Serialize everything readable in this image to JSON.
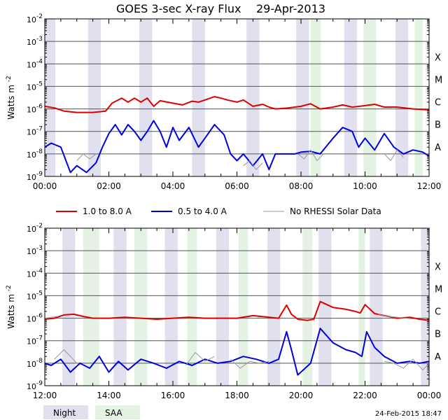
{
  "title_left": "GOES 3-sec X-ray Flux",
  "title_date": "29-Apr-2013",
  "footer_stamp": "24-Feb-2015 18:47",
  "chart_data": [
    {
      "type": "line",
      "y_scale": "log",
      "ylim": [
        1e-09,
        0.01
      ],
      "ylabel": "Watts m",
      "ylabel_exp": "-2",
      "ytick_labels": [
        {
          "value": 0.01,
          "base": "10",
          "exp": "-2"
        },
        {
          "value": 0.001,
          "base": "10",
          "exp": "-3"
        },
        {
          "value": 0.0001,
          "base": "10",
          "exp": "-4"
        },
        {
          "value": 1e-05,
          "base": "10",
          "exp": "-5"
        },
        {
          "value": 1e-06,
          "base": "10",
          "exp": "-6"
        },
        {
          "value": 1e-07,
          "base": "10",
          "exp": "-7"
        },
        {
          "value": 1e-08,
          "base": "10",
          "exp": "-8"
        },
        {
          "value": 1e-09,
          "base": "10",
          "exp": "-9"
        }
      ],
      "flare_classes": [
        {
          "label": "X",
          "value": 0.0001
        },
        {
          "label": "M",
          "value": 1e-05
        },
        {
          "label": "C",
          "value": 1e-06
        },
        {
          "label": "B",
          "value": 1e-07
        },
        {
          "label": "A",
          "value": 1e-08
        }
      ],
      "xlim": [
        0,
        12
      ],
      "xtick_values": [
        0,
        2,
        4,
        6,
        8,
        10,
        12
      ],
      "xtick_labels": [
        "00:00",
        "02:00",
        "04:00",
        "06:00",
        "08:00",
        "10:00",
        "12:00"
      ],
      "night_periods": [
        [
          0.0,
          0.33
        ],
        [
          1.35,
          1.75
        ],
        [
          2.95,
          3.35
        ],
        [
          4.6,
          5.0
        ],
        [
          6.3,
          6.7
        ],
        [
          7.85,
          8.25
        ],
        [
          9.35,
          9.75
        ],
        [
          10.95,
          11.35
        ]
      ],
      "saa_periods": [
        [
          8.3,
          8.62
        ],
        [
          9.95,
          10.35
        ],
        [
          11.55,
          11.8
        ]
      ],
      "series": [
        {
          "name": "1.0 to 8.0 A",
          "color": "#dd0000",
          "x": [
            0,
            0.3,
            0.6,
            1.0,
            1.5,
            1.9,
            2.1,
            2.4,
            2.6,
            2.8,
            3.0,
            3.2,
            3.4,
            3.6,
            4.0,
            4.3,
            4.6,
            4.8,
            5.0,
            5.3,
            5.5,
            5.7,
            6.0,
            6.2,
            6.5,
            6.8,
            7.0,
            7.2,
            7.6,
            8.0,
            8.3,
            8.6,
            9.0,
            9.3,
            9.6,
            10.0,
            10.3,
            10.6,
            11.0,
            11.5,
            12.0
          ],
          "y": [
            1.3e-06,
            1.1e-06,
            8e-07,
            7e-07,
            7e-07,
            8e-07,
            1.8e-06,
            3e-06,
            2e-06,
            3e-06,
            2e-06,
            3e-06,
            1.3e-06,
            2.3e-06,
            1.8e-06,
            1.5e-06,
            2.2e-06,
            2e-06,
            2.5e-06,
            3.5e-06,
            3e-06,
            2.5e-06,
            2e-06,
            2.5e-06,
            1.3e-06,
            1.6e-06,
            1.2e-06,
            1e-06,
            1.1e-06,
            1.3e-06,
            1.7e-06,
            1e-06,
            1.2e-06,
            1.5e-06,
            1.2e-06,
            1.4e-06,
            1.6e-06,
            1.2e-06,
            1.2e-06,
            1e-06,
            9e-07
          ]
        },
        {
          "name": "0.5 to 4.0 A",
          "color": "#0000dd",
          "x": [
            0,
            0.2,
            0.5,
            0.8,
            1.0,
            1.3,
            1.6,
            1.8,
            2.0,
            2.2,
            2.4,
            2.6,
            2.8,
            3.0,
            3.2,
            3.4,
            3.6,
            3.8,
            4.0,
            4.2,
            4.5,
            4.8,
            5.0,
            5.3,
            5.6,
            5.8,
            6.0,
            6.2,
            6.5,
            6.8,
            7.0,
            7.2,
            7.5,
            7.8,
            8.0,
            8.3,
            8.6,
            9.0,
            9.3,
            9.6,
            9.8,
            10.0,
            10.3,
            10.6,
            10.9,
            11.2,
            11.5,
            11.8,
            12.0
          ],
          "y": [
            2e-08,
            3e-08,
            2e-08,
            1.5e-09,
            3e-09,
            1.5e-09,
            4e-09,
            2e-08,
            8e-08,
            2e-07,
            7e-08,
            2e-07,
            1e-07,
            4e-08,
            1e-07,
            3e-07,
            1e-07,
            2e-08,
            1.5e-07,
            4e-08,
            1.5e-07,
            2e-08,
            5e-08,
            2e-07,
            7e-08,
            1e-08,
            5e-09,
            1e-08,
            3e-09,
            1e-08,
            2e-09,
            1e-08,
            1e-08,
            1e-08,
            1.2e-08,
            1.3e-08,
            1e-08,
            5e-08,
            1.5e-07,
            1e-07,
            2e-08,
            5e-08,
            1.5e-08,
            8e-08,
            2e-08,
            1e-08,
            1.5e-08,
            1.2e-08,
            8e-09
          ]
        },
        {
          "name": "No RHESSI Solar Data",
          "color": "#999999",
          "segments": [
            {
              "x": [
                1.0,
                1.2,
                1.4,
                1.6
              ],
              "y": [
                5e-09,
                1e-08,
                6e-09,
                1e-08
              ]
            },
            {
              "x": [
                6.2,
                6.4,
                6.6,
                6.8
              ],
              "y": [
                3e-09,
                5e-09,
                2e-09,
                4e-09
              ]
            },
            {
              "x": [
                7.9,
                8.1,
                8.3,
                8.5,
                8.7
              ],
              "y": [
                1e-08,
                6e-09,
                1.5e-08,
                5e-09,
                1e-08
              ]
            },
            {
              "x": [
                10.6,
                10.8,
                11.0,
                11.2
              ],
              "y": [
                1e-08,
                5e-09,
                1.5e-08,
                7e-09
              ]
            }
          ]
        }
      ]
    },
    {
      "type": "line",
      "y_scale": "log",
      "ylim": [
        1e-09,
        0.01
      ],
      "ylabel": "Watts m",
      "ylabel_exp": "-2",
      "ytick_labels": [
        {
          "value": 0.01,
          "base": "10",
          "exp": "-2"
        },
        {
          "value": 0.001,
          "base": "10",
          "exp": "-3"
        },
        {
          "value": 0.0001,
          "base": "10",
          "exp": "-4"
        },
        {
          "value": 1e-05,
          "base": "10",
          "exp": "-5"
        },
        {
          "value": 1e-06,
          "base": "10",
          "exp": "-6"
        },
        {
          "value": 1e-07,
          "base": "10",
          "exp": "-7"
        },
        {
          "value": 1e-08,
          "base": "10",
          "exp": "-8"
        },
        {
          "value": 1e-09,
          "base": "10",
          "exp": "-9"
        }
      ],
      "flare_classes": [
        {
          "label": "X",
          "value": 0.0001
        },
        {
          "label": "M",
          "value": 1e-05
        },
        {
          "label": "C",
          "value": 1e-06
        },
        {
          "label": "B",
          "value": 1e-07
        },
        {
          "label": "A",
          "value": 1e-08
        }
      ],
      "xlim": [
        12,
        24
      ],
      "xtick_values": [
        12,
        14,
        16,
        18,
        20,
        22,
        24
      ],
      "xtick_labels": [
        "12:00",
        "14:00",
        "16:00",
        "18:00",
        "20:00",
        "22:00",
        "00:00"
      ],
      "night_periods": [
        [
          12.55,
          12.95
        ],
        [
          14.15,
          14.55
        ],
        [
          15.75,
          16.15
        ],
        [
          17.35,
          17.75
        ],
        [
          18.95,
          19.35
        ],
        [
          20.55,
          20.95
        ],
        [
          22.15,
          22.55
        ],
        [
          23.75,
          24.0
        ]
      ],
      "saa_periods": [
        [
          13.2,
          13.7
        ],
        [
          14.8,
          15.2
        ],
        [
          16.45,
          16.75
        ],
        [
          18.05,
          18.35
        ],
        [
          20.05,
          20.35
        ],
        [
          21.8,
          22.0
        ]
      ],
      "series": [
        {
          "name": "1.0 to 8.0 A",
          "color": "#dd0000",
          "x": [
            12.0,
            12.3,
            12.6,
            12.9,
            13.2,
            13.5,
            14.0,
            14.5,
            15.0,
            15.5,
            16.0,
            16.5,
            17.0,
            17.5,
            18.0,
            18.5,
            19.0,
            19.3,
            19.55,
            19.7,
            19.9,
            20.2,
            20.4,
            20.6,
            21.0,
            21.4,
            21.7,
            21.85,
            22.0,
            22.3,
            22.6,
            23.0,
            23.4,
            23.7,
            24.0
          ],
          "y": [
            9e-07,
            1e-06,
            1.4e-06,
            1.5e-06,
            1.2e-06,
            1e-06,
            1e-06,
            1.1e-06,
            1e-06,
            9e-07,
            1e-06,
            1.1e-06,
            1e-06,
            1e-06,
            1e-06,
            1.3e-06,
            1.1e-06,
            1e-06,
            3.8e-06,
            1.5e-06,
            9e-07,
            8e-07,
            9e-07,
            5.5e-06,
            3e-06,
            2.5e-06,
            2e-06,
            1.7e-06,
            4e-06,
            1.6e-06,
            1.3e-06,
            1e-06,
            1.1e-06,
            9e-07,
            8e-07
          ]
        },
        {
          "name": "0.5 to 4.0 A",
          "color": "#0000dd",
          "x": [
            12.0,
            12.2,
            12.5,
            12.8,
            13.1,
            13.4,
            13.7,
            14.0,
            14.3,
            14.6,
            15.0,
            15.4,
            15.8,
            16.2,
            16.6,
            17.0,
            17.4,
            17.8,
            18.2,
            18.6,
            19.0,
            19.3,
            19.55,
            19.7,
            19.9,
            20.3,
            20.6,
            21.0,
            21.4,
            21.7,
            21.9,
            22.05,
            22.3,
            22.6,
            23.0,
            23.4,
            23.7,
            24.0
          ],
          "y": [
            1e-08,
            8e-09,
            1.5e-08,
            4e-09,
            1e-08,
            6e-09,
            2e-08,
            4e-09,
            1.2e-08,
            5e-09,
            1.5e-08,
            1e-08,
            6e-09,
            1.2e-08,
            8e-09,
            1.5e-08,
            1e-08,
            1.2e-08,
            2e-08,
            1.5e-08,
            1e-08,
            1.5e-08,
            2.5e-07,
            4e-08,
            3e-09,
            1e-08,
            3.5e-07,
            8e-08,
            4e-08,
            3e-08,
            2e-08,
            2.5e-07,
            5e-08,
            2e-08,
            1e-08,
            1.2e-08,
            1e-08,
            1.2e-08
          ]
        },
        {
          "name": "No RHESSI Solar Data",
          "color": "#999999",
          "segments": [
            {
              "x": [
                12.3,
                12.6,
                12.8,
                13.0
              ],
              "y": [
                1.5e-08,
                4e-08,
                2e-08,
                1e-08
              ]
            },
            {
              "x": [
                16.4,
                16.7,
                17.0,
                17.3
              ],
              "y": [
                8e-09,
                3e-08,
                1.2e-08,
                2e-08
              ]
            },
            {
              "x": [
                17.8,
                18.1,
                18.4,
                18.7,
                19.0
              ],
              "y": [
                1.5e-08,
                6e-09,
                1.2e-08,
                1e-08,
                1.2e-08
              ]
            },
            {
              "x": [
                22.6,
                22.9,
                23.2,
                23.5,
                23.8,
                24.0
              ],
              "y": [
                1.2e-08,
                1e-08,
                6e-09,
                1.5e-08,
                5e-09,
                1e-08
              ]
            }
          ]
        },
        {
          "name": "No RHESSI Solar Data (high)",
          "color": "#999999",
          "segments": [
            {
              "x": [
                12.0,
                12.4
              ],
              "y": [
                1e-06,
                1.2e-06
              ]
            },
            {
              "x": [
                22.4,
                22.7,
                23.0,
                23.3,
                23.6
              ],
              "y": [
                1.5e-06,
                1.2e-06,
                1.1e-06,
                1e-06,
                9e-07
              ]
            }
          ]
        }
      ]
    }
  ],
  "legend": {
    "items": [
      {
        "label": "1.0 to 8.0 A",
        "color": "#dd0000"
      },
      {
        "label": "0.5 to 4.0 A",
        "color": "#0000dd"
      },
      {
        "label": "No RHESSI Solar Data",
        "color": "#999999"
      }
    ]
  },
  "bottom_legend": {
    "night_label": "Night",
    "night_color": "#e0e0ee",
    "saa_label": "SAA",
    "saa_color": "#e4f2e4"
  }
}
